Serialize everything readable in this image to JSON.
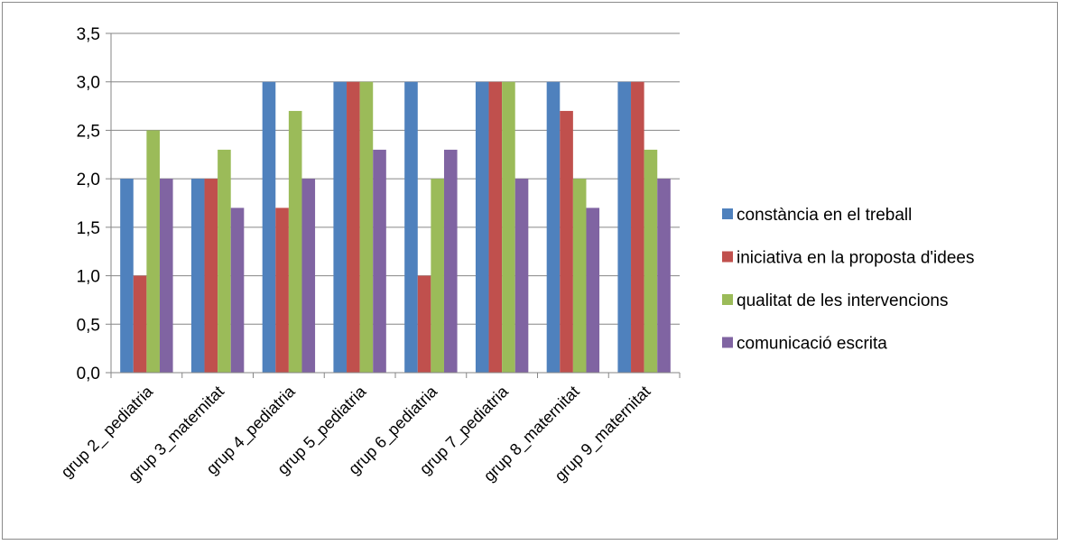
{
  "chart_data": {
    "type": "bar",
    "title": "",
    "xlabel": "",
    "ylabel": "",
    "ylim": [
      0,
      3.5
    ],
    "yticks": [
      "0,0",
      "0,5",
      "1,0",
      "1,5",
      "2,0",
      "2,5",
      "3,0",
      "3,5"
    ],
    "grid": true,
    "legend_position": "right",
    "categories": [
      "grup 2_ pediatria",
      "grup 3_maternitat",
      "grup 4_pediatria",
      "grup 5_pediatria",
      "grup 6_pediatria",
      "grup 7_pediatria",
      "grup 8_maternitat",
      "grup 9_maternitat"
    ],
    "series": [
      {
        "name": "constància en el treball",
        "color": "#4F81BD",
        "values": [
          2.0,
          2.0,
          3.0,
          3.0,
          3.0,
          3.0,
          3.0,
          3.0
        ]
      },
      {
        "name": "iniciativa en la proposta d'idees",
        "color": "#C0504D",
        "values": [
          1.0,
          2.0,
          1.7,
          3.0,
          1.0,
          3.0,
          2.7,
          3.0
        ]
      },
      {
        "name": "qualitat de les intervencions",
        "color": "#9BBB59",
        "values": [
          2.5,
          2.3,
          2.7,
          3.0,
          2.0,
          3.0,
          2.0,
          2.3
        ]
      },
      {
        "name": "comunicació escrita",
        "color": "#8064A2",
        "values": [
          2.0,
          1.7,
          2.0,
          2.3,
          2.3,
          2.0,
          1.7,
          2.0
        ]
      }
    ]
  }
}
